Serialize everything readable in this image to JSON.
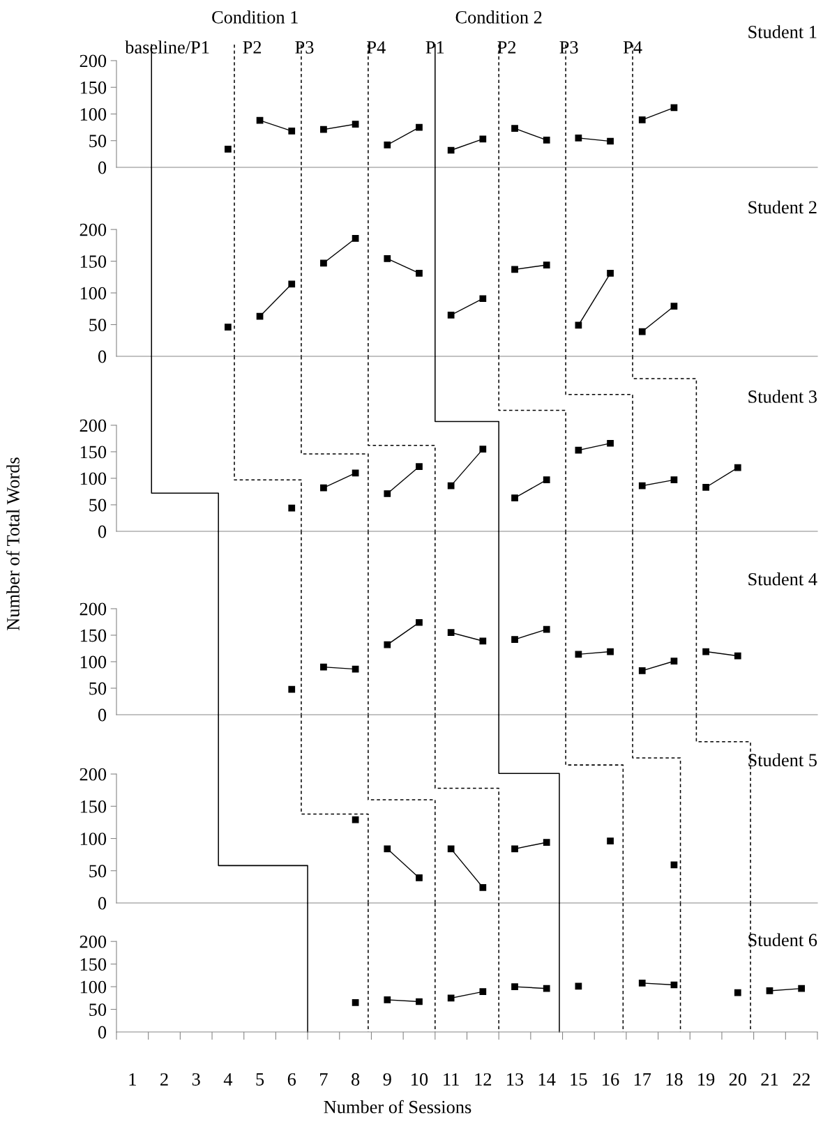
{
  "chart_data": [
    {
      "type": "line",
      "title": "Student 1",
      "annotations": [
        "Condition 1",
        "Condition 2",
        "baseline/P1",
        "P2",
        "P3",
        "P4",
        "P1",
        "P2",
        "P3",
        "P4"
      ],
      "xlim": [
        0.5,
        22.5
      ],
      "ylim": [
        0,
        230
      ],
      "yticks": [
        0,
        50,
        100,
        150,
        200
      ],
      "tick_labels": "y",
      "grid": false,
      "marker": "square",
      "line_style": "solid",
      "series": [
        {
          "color": "#000000",
          "x": [
            4
          ],
          "values": [
            34
          ]
        },
        {
          "color": "#000000",
          "x": [
            5,
            6
          ],
          "values": [
            88,
            68
          ]
        },
        {
          "color": "#000000",
          "x": [
            7,
            8
          ],
          "values": [
            71,
            81
          ]
        },
        {
          "color": "#000000",
          "x": [
            9,
            10
          ],
          "values": [
            42,
            75
          ]
        },
        {
          "color": "#000000",
          "x": [
            11,
            12
          ],
          "values": [
            32,
            53
          ]
        },
        {
          "color": "#000000",
          "x": [
            13,
            14
          ],
          "values": [
            73,
            51
          ]
        },
        {
          "color": "#000000",
          "x": [
            15,
            16
          ],
          "values": [
            55,
            49
          ]
        },
        {
          "color": "#000000",
          "x": [
            17,
            18
          ],
          "values": [
            89,
            112
          ]
        },
        {
          "color": "#000000",
          "marker": "none",
          "x": [
            1.6,
            1.6
          ],
          "values": [
            230,
            0
          ]
        },
        {
          "color": "#000000",
          "marker": "none",
          "line_style": "dashed",
          "x": [
            4.2,
            4.2
          ],
          "values": [
            230,
            0
          ]
        },
        {
          "color": "#000000",
          "marker": "none",
          "line_style": "dashed",
          "x": [
            6.3,
            6.3
          ],
          "values": [
            230,
            0
          ]
        },
        {
          "color": "#000000",
          "marker": "none",
          "line_style": "dashed",
          "x": [
            8.4,
            8.4
          ],
          "values": [
            230,
            0
          ]
        },
        {
          "color": "#000000",
          "marker": "none",
          "x": [
            10.5,
            10.5
          ],
          "values": [
            230,
            0
          ]
        },
        {
          "color": "#000000",
          "marker": "none",
          "line_style": "dashed",
          "x": [
            12.5,
            12.5
          ],
          "values": [
            230,
            0
          ]
        },
        {
          "color": "#000000",
          "marker": "none",
          "line_style": "dashed",
          "x": [
            14.6,
            14.6
          ],
          "values": [
            230,
            0
          ]
        },
        {
          "color": "#000000",
          "marker": "none",
          "line_style": "dashed",
          "x": [
            16.7,
            16.7
          ],
          "values": [
            230,
            0
          ]
        }
      ]
    },
    {
      "type": "line",
      "title": "Student 2",
      "xlim": [
        0.5,
        22.5
      ],
      "ylim": [
        0,
        298
      ],
      "yticks": [
        0,
        50,
        100,
        150,
        200
      ],
      "tick_labels": "y",
      "grid": false,
      "marker": "square",
      "line_style": "solid",
      "series": [
        {
          "color": "#000000",
          "x": [
            4
          ],
          "values": [
            46
          ]
        },
        {
          "color": "#000000",
          "x": [
            5,
            6
          ],
          "values": [
            63,
            114
          ]
        },
        {
          "color": "#000000",
          "x": [
            7,
            8
          ],
          "values": [
            147,
            186
          ]
        },
        {
          "color": "#000000",
          "x": [
            9,
            10
          ],
          "values": [
            154,
            131
          ]
        },
        {
          "color": "#000000",
          "x": [
            11,
            12
          ],
          "values": [
            65,
            91
          ]
        },
        {
          "color": "#000000",
          "x": [
            13,
            14
          ],
          "values": [
            137,
            144
          ]
        },
        {
          "color": "#000000",
          "x": [
            15,
            16
          ],
          "values": [
            49,
            131
          ]
        },
        {
          "color": "#000000",
          "x": [
            17,
            18
          ],
          "values": [
            39,
            79
          ]
        },
        {
          "color": "#000000",
          "marker": "none",
          "x": [
            1.6,
            1.6
          ],
          "values": [
            298,
            0
          ]
        },
        {
          "color": "#000000",
          "marker": "none",
          "line_style": "dashed",
          "x": [
            4.2,
            4.2
          ],
          "values": [
            298,
            0
          ]
        },
        {
          "color": "#000000",
          "marker": "none",
          "line_style": "dashed",
          "x": [
            6.3,
            6.3
          ],
          "values": [
            298,
            0
          ]
        },
        {
          "color": "#000000",
          "marker": "none",
          "line_style": "dashed",
          "x": [
            8.4,
            8.4
          ],
          "values": [
            298,
            0
          ]
        },
        {
          "color": "#000000",
          "marker": "none",
          "x": [
            10.5,
            10.5
          ],
          "values": [
            298,
            0
          ]
        },
        {
          "color": "#000000",
          "marker": "none",
          "line_style": "dashed",
          "x": [
            12.5,
            12.5
          ],
          "values": [
            298,
            0
          ]
        },
        {
          "color": "#000000",
          "marker": "none",
          "line_style": "dashed",
          "x": [
            14.6,
            14.6
          ],
          "values": [
            298,
            0
          ]
        },
        {
          "color": "#000000",
          "marker": "none",
          "line_style": "dashed",
          "x": [
            16.7,
            16.7
          ],
          "values": [
            298,
            0
          ]
        }
      ]
    },
    {
      "type": "line",
      "title": "Student 3",
      "ylabel": "Number of Total Words",
      "xlim": [
        0.5,
        22.5
      ],
      "ylim": [
        0,
        330
      ],
      "yticks": [
        0,
        50,
        100,
        150,
        200
      ],
      "tick_labels": "y",
      "grid": false,
      "marker": "square",
      "line_style": "solid",
      "series": [
        {
          "color": "#000000",
          "x": [
            6
          ],
          "values": [
            44
          ]
        },
        {
          "color": "#000000",
          "x": [
            7,
            8
          ],
          "values": [
            82,
            110
          ]
        },
        {
          "color": "#000000",
          "x": [
            9,
            10
          ],
          "values": [
            71,
            122
          ]
        },
        {
          "color": "#000000",
          "x": [
            11,
            12
          ],
          "values": [
            86,
            155
          ]
        },
        {
          "color": "#000000",
          "x": [
            13,
            14
          ],
          "values": [
            63,
            97
          ]
        },
        {
          "color": "#000000",
          "x": [
            15,
            16
          ],
          "values": [
            153,
            166
          ]
        },
        {
          "color": "#000000",
          "x": [
            17,
            18
          ],
          "values": [
            86,
            97
          ]
        },
        {
          "color": "#000000",
          "x": [
            19,
            20
          ],
          "values": [
            83,
            120
          ]
        },
        {
          "color": "#000000",
          "marker": "none",
          "x": [
            1.6,
            1.6,
            3.7,
            3.7
          ],
          "values": [
            330,
            72,
            72,
            0
          ]
        },
        {
          "color": "#000000",
          "marker": "none",
          "line_style": "dashed",
          "x": [
            4.2,
            4.2,
            6.3,
            6.3
          ],
          "values": [
            330,
            97,
            97,
            0
          ]
        },
        {
          "color": "#000000",
          "marker": "none",
          "line_style": "dashed",
          "x": [
            6.3,
            6.3,
            8.4,
            8.4
          ],
          "values": [
            330,
            146,
            146,
            0
          ]
        },
        {
          "color": "#000000",
          "marker": "none",
          "line_style": "dashed",
          "x": [
            8.4,
            8.4,
            10.5,
            10.5
          ],
          "values": [
            330,
            162,
            162,
            0
          ]
        },
        {
          "color": "#000000",
          "marker": "none",
          "x": [
            10.5,
            10.5,
            12.5,
            12.5
          ],
          "values": [
            330,
            207,
            207,
            0
          ]
        },
        {
          "color": "#000000",
          "marker": "none",
          "line_style": "dashed",
          "x": [
            12.5,
            12.5,
            14.6,
            14.6
          ],
          "values": [
            330,
            228,
            228,
            0
          ]
        },
        {
          "color": "#000000",
          "marker": "none",
          "line_style": "dashed",
          "x": [
            14.6,
            14.6,
            16.7,
            16.7
          ],
          "values": [
            330,
            258,
            258,
            0
          ]
        },
        {
          "color": "#000000",
          "marker": "none",
          "line_style": "dashed",
          "x": [
            16.7,
            16.7,
            18.7,
            18.7
          ],
          "values": [
            330,
            288,
            288,
            0
          ]
        }
      ]
    },
    {
      "type": "line",
      "title": "Student 4",
      "xlim": [
        0.5,
        22.5
      ],
      "ylim": [
        0,
        346
      ],
      "yticks": [
        0,
        50,
        100,
        150,
        200
      ],
      "tick_labels": "y",
      "grid": false,
      "marker": "square",
      "line_style": "solid",
      "series": [
        {
          "color": "#000000",
          "x": [
            6
          ],
          "values": [
            48
          ]
        },
        {
          "color": "#000000",
          "x": [
            7,
            8
          ],
          "values": [
            90,
            86
          ]
        },
        {
          "color": "#000000",
          "x": [
            9,
            10
          ],
          "values": [
            132,
            174
          ]
        },
        {
          "color": "#000000",
          "x": [
            11,
            12
          ],
          "values": [
            155,
            139
          ]
        },
        {
          "color": "#000000",
          "x": [
            13,
            14
          ],
          "values": [
            142,
            161
          ]
        },
        {
          "color": "#000000",
          "x": [
            15,
            16
          ],
          "values": [
            114,
            119
          ]
        },
        {
          "color": "#000000",
          "x": [
            17,
            18
          ],
          "values": [
            83,
            101
          ]
        },
        {
          "color": "#000000",
          "x": [
            19,
            20
          ],
          "values": [
            119,
            111
          ]
        },
        {
          "color": "#000000",
          "marker": "none",
          "x": [
            3.7,
            3.7
          ],
          "values": [
            346,
            0
          ]
        },
        {
          "color": "#000000",
          "marker": "none",
          "line_style": "dashed",
          "x": [
            6.3,
            6.3
          ],
          "values": [
            346,
            0
          ]
        },
        {
          "color": "#000000",
          "marker": "none",
          "line_style": "dashed",
          "x": [
            8.4,
            8.4
          ],
          "values": [
            346,
            0
          ]
        },
        {
          "color": "#000000",
          "marker": "none",
          "line_style": "dashed",
          "x": [
            10.5,
            10.5
          ],
          "values": [
            346,
            0
          ]
        },
        {
          "color": "#000000",
          "marker": "none",
          "x": [
            12.5,
            12.5
          ],
          "values": [
            346,
            0
          ]
        },
        {
          "color": "#000000",
          "marker": "none",
          "line_style": "dashed",
          "x": [
            14.6,
            14.6
          ],
          "values": [
            346,
            0
          ]
        },
        {
          "color": "#000000",
          "marker": "none",
          "line_style": "dashed",
          "x": [
            16.7,
            16.7
          ],
          "values": [
            346,
            0
          ]
        },
        {
          "color": "#000000",
          "marker": "none",
          "line_style": "dashed",
          "x": [
            18.7,
            18.7
          ],
          "values": [
            346,
            0
          ]
        }
      ]
    },
    {
      "type": "line",
      "title": "Student 5",
      "xlim": [
        0.5,
        22.5
      ],
      "ylim": [
        0,
        292
      ],
      "yticks": [
        0,
        50,
        100,
        150,
        200
      ],
      "tick_labels": "y",
      "grid": false,
      "marker": "square",
      "line_style": "solid",
      "series": [
        {
          "color": "#000000",
          "x": [
            8
          ],
          "values": [
            129
          ]
        },
        {
          "color": "#000000",
          "x": [
            9,
            10
          ],
          "values": [
            84,
            39
          ]
        },
        {
          "color": "#000000",
          "x": [
            11,
            12
          ],
          "values": [
            84,
            24
          ]
        },
        {
          "color": "#000000",
          "x": [
            13,
            14
          ],
          "values": [
            84,
            94
          ]
        },
        {
          "color": "#000000",
          "x": [
            16
          ],
          "values": [
            96
          ]
        },
        {
          "color": "#000000",
          "x": [
            18
          ],
          "values": [
            59
          ]
        },
        {
          "color": "#000000",
          "marker": "none",
          "x": [
            3.7,
            3.7,
            6.5,
            6.5
          ],
          "values": [
            292,
            58,
            58,
            0
          ]
        },
        {
          "color": "#000000",
          "marker": "none",
          "line_style": "dashed",
          "x": [
            6.3,
            6.3,
            8.4,
            8.4
          ],
          "values": [
            292,
            138,
            138,
            0
          ]
        },
        {
          "color": "#000000",
          "marker": "none",
          "line_style": "dashed",
          "x": [
            8.4,
            8.4,
            10.5,
            10.5
          ],
          "values": [
            292,
            160,
            160,
            0
          ]
        },
        {
          "color": "#000000",
          "marker": "none",
          "line_style": "dashed",
          "x": [
            10.5,
            10.5,
            12.5,
            12.5
          ],
          "values": [
            292,
            178,
            178,
            0
          ]
        },
        {
          "color": "#000000",
          "marker": "none",
          "x": [
            12.5,
            12.5,
            14.4,
            14.4
          ],
          "values": [
            292,
            201,
            201,
            0
          ]
        },
        {
          "color": "#000000",
          "marker": "none",
          "line_style": "dashed",
          "x": [
            14.6,
            14.6,
            16.4,
            16.4
          ],
          "values": [
            292,
            214,
            214,
            0
          ]
        },
        {
          "color": "#000000",
          "marker": "none",
          "line_style": "dashed",
          "x": [
            16.7,
            16.7,
            18.2,
            18.2
          ],
          "values": [
            292,
            225,
            225,
            0
          ]
        },
        {
          "color": "#000000",
          "marker": "none",
          "line_style": "dashed",
          "x": [
            18.7,
            18.7,
            20.4,
            20.4
          ],
          "values": [
            292,
            250,
            250,
            0
          ]
        }
      ]
    },
    {
      "type": "line",
      "title": "Student 6",
      "xlabel": "Number of Sessions",
      "xlim": [
        0.5,
        22.5
      ],
      "ylim": [
        0,
        285
      ],
      "yticks": [
        0,
        50,
        100,
        150,
        200
      ],
      "grid": false,
      "marker": "square",
      "line_style": "solid",
      "xticks": [
        {
          "value": 0.5,
          "label": null
        },
        1,
        {
          "value": 1.5,
          "label": null
        },
        2,
        {
          "value": 2.5,
          "label": null
        },
        3,
        {
          "value": 3.5,
          "label": null
        },
        4,
        {
          "value": 4.5,
          "label": null
        },
        5,
        {
          "value": 5.5,
          "label": null
        },
        6,
        {
          "value": 6.5,
          "label": null
        },
        7,
        {
          "value": 7.5,
          "label": null
        },
        8,
        {
          "value": 8.5,
          "label": null
        },
        9,
        {
          "value": 9.5,
          "label": null
        },
        10,
        {
          "value": 10.5,
          "label": null
        },
        11,
        {
          "value": 11.5,
          "label": null
        },
        12,
        {
          "value": 12.5,
          "label": null
        },
        13,
        {
          "value": 13.5,
          "label": null
        },
        14,
        {
          "value": 14.5,
          "label": null
        },
        15,
        {
          "value": 15.5,
          "label": null
        },
        16,
        {
          "value": 16.5,
          "label": null
        },
        17,
        {
          "value": 17.5,
          "label": null
        },
        18,
        {
          "value": 18.5,
          "label": null
        },
        19,
        {
          "value": 19.5,
          "label": null
        },
        20,
        {
          "value": 20.5,
          "label": null
        },
        21,
        {
          "value": 21.5,
          "label": null
        },
        22,
        {
          "value": 22.5,
          "label": null
        }
      ],
      "series": [
        {
          "color": "#000000",
          "x": [
            8
          ],
          "values": [
            65
          ]
        },
        {
          "color": "#000000",
          "x": [
            9,
            10
          ],
          "values": [
            71,
            67
          ]
        },
        {
          "color": "#000000",
          "x": [
            11,
            12
          ],
          "values": [
            75,
            89
          ]
        },
        {
          "color": "#000000",
          "x": [
            13,
            14
          ],
          "values": [
            100,
            96
          ]
        },
        {
          "color": "#000000",
          "x": [
            15
          ],
          "values": [
            101
          ]
        },
        {
          "color": "#000000",
          "x": [
            17,
            18
          ],
          "values": [
            108,
            104
          ]
        },
        {
          "color": "#000000",
          "x": [
            20
          ],
          "values": [
            87
          ]
        },
        {
          "color": "#000000",
          "x": [
            21,
            22
          ],
          "values": [
            91,
            96
          ]
        },
        {
          "color": "#000000",
          "marker": "none",
          "x": [
            6.5,
            6.5
          ],
          "values": [
            285,
            0
          ]
        },
        {
          "color": "#000000",
          "marker": "none",
          "line_style": "dashed",
          "x": [
            8.4,
            8.4
          ],
          "values": [
            285,
            0
          ]
        },
        {
          "color": "#000000",
          "marker": "none",
          "line_style": "dashed",
          "x": [
            10.5,
            10.5
          ],
          "values": [
            285,
            0
          ]
        },
        {
          "color": "#000000",
          "marker": "none",
          "line_style": "dashed",
          "x": [
            12.5,
            12.5
          ],
          "values": [
            285,
            0
          ]
        },
        {
          "color": "#000000",
          "marker": "none",
          "x": [
            14.4,
            14.4
          ],
          "values": [
            285,
            0
          ]
        },
        {
          "color": "#000000",
          "marker": "none",
          "line_style": "dashed",
          "x": [
            16.4,
            16.4
          ],
          "values": [
            285,
            0
          ]
        },
        {
          "color": "#000000",
          "marker": "none",
          "line_style": "dashed",
          "x": [
            18.2,
            18.2
          ],
          "values": [
            285,
            0
          ]
        },
        {
          "color": "#000000",
          "marker": "none",
          "line_style": "dashed",
          "x": [
            20.4,
            20.4
          ],
          "values": [
            285,
            0
          ]
        }
      ]
    }
  ]
}
